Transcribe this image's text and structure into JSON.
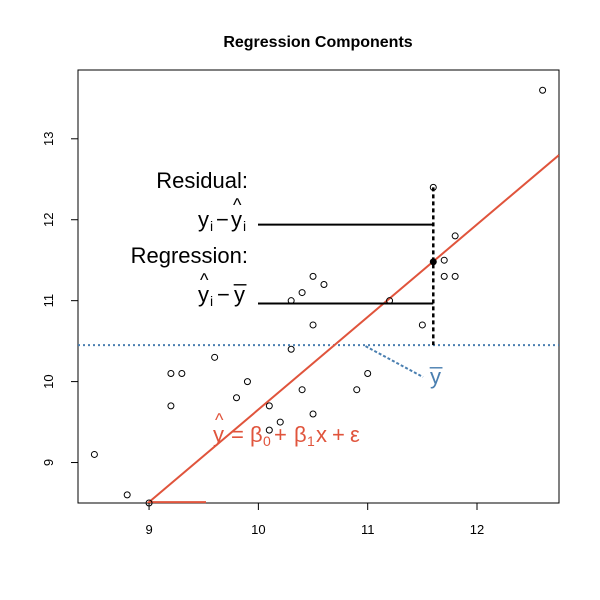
{
  "chart_data": {
    "type": "scatter",
    "title": "Regression Components",
    "xlabel": "",
    "ylabel": "",
    "xlim": [
      8.35,
      12.75
    ],
    "ylim": [
      8.5,
      13.85
    ],
    "x_ticks": [
      9,
      10,
      11,
      12
    ],
    "y_ticks": [
      9,
      10,
      11,
      12,
      13
    ],
    "grid": false,
    "points": [
      {
        "x": 8.5,
        "y": 9.1
      },
      {
        "x": 8.8,
        "y": 8.6
      },
      {
        "x": 9.0,
        "y": 8.5
      },
      {
        "x": 9.2,
        "y": 10.1
      },
      {
        "x": 9.2,
        "y": 9.7
      },
      {
        "x": 9.3,
        "y": 10.1
      },
      {
        "x": 9.6,
        "y": 10.3
      },
      {
        "x": 9.8,
        "y": 9.8
      },
      {
        "x": 9.9,
        "y": 10.0
      },
      {
        "x": 10.1,
        "y": 9.7
      },
      {
        "x": 10.1,
        "y": 9.4
      },
      {
        "x": 10.2,
        "y": 9.5
      },
      {
        "x": 10.3,
        "y": 11.0
      },
      {
        "x": 10.3,
        "y": 10.4
      },
      {
        "x": 10.4,
        "y": 11.1
      },
      {
        "x": 10.4,
        "y": 9.9
      },
      {
        "x": 10.5,
        "y": 11.3
      },
      {
        "x": 10.5,
        "y": 10.7
      },
      {
        "x": 10.5,
        "y": 9.6
      },
      {
        "x": 10.6,
        "y": 11.2
      },
      {
        "x": 10.9,
        "y": 9.9
      },
      {
        "x": 11.0,
        "y": 10.1
      },
      {
        "x": 11.2,
        "y": 11.0
      },
      {
        "x": 11.5,
        "y": 10.7
      },
      {
        "x": 11.6,
        "y": 12.4
      },
      {
        "x": 11.7,
        "y": 11.5
      },
      {
        "x": 11.7,
        "y": 11.3
      },
      {
        "x": 11.8,
        "y": 11.8
      },
      {
        "x": 11.8,
        "y": 11.3
      },
      {
        "x": 12.6,
        "y": 13.6
      }
    ],
    "highlight_point": {
      "x": 11.6,
      "y": 11.48
    },
    "regression_line": {
      "intercept": -1.78,
      "slope": 1.1435,
      "color": "#e0543c"
    },
    "mean_line": {
      "y": 10.45,
      "color": "#4a7fb0"
    },
    "annotations": {
      "residual_title": "Residual:",
      "residual_formula": {
        "y": "y",
        "sub": "i",
        "minus": "−",
        "yhat": "y",
        "hat": "^",
        "sub2": "i"
      },
      "regression_title": "Regression:",
      "regression_formula": {
        "yhat": "y",
        "hat": "^",
        "sub": "i",
        "minus": "−",
        "ybar": "y",
        "bar": "_"
      },
      "ybar_label": {
        "y": "y",
        "bar": "_"
      },
      "model_label": {
        "yhat": "y",
        "hat": "^",
        "eq": "=",
        "b0": "β",
        "s0": "0",
        "plus": "+",
        "b1": "β",
        "s1": "1",
        "x": "x",
        "plus2": "+",
        "eps": "ε"
      }
    }
  }
}
